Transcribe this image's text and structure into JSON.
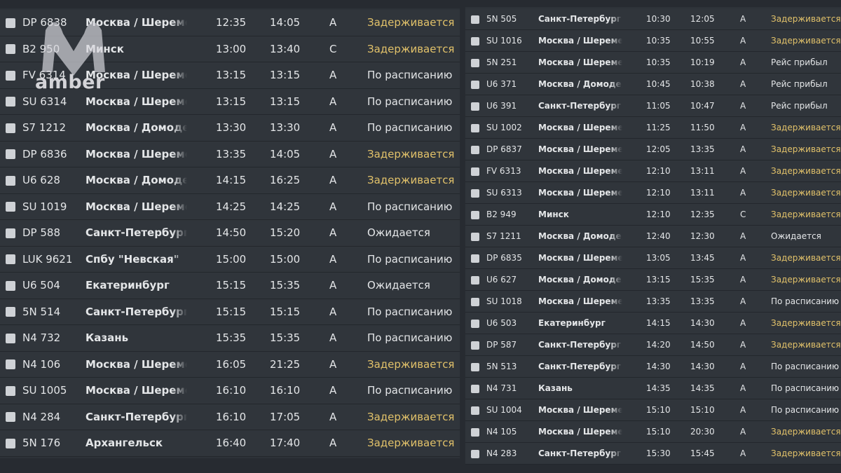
{
  "logo": "amber",
  "left_board": {
    "rows": [
      {
        "flight": "DP 6838",
        "destination": "Москва / Шереметь",
        "scheduled": "12:35",
        "expected": "14:05",
        "terminal": "A",
        "status": "Задерживается",
        "status_color": "#e2c26a"
      },
      {
        "flight": "B2 950",
        "destination": "Минск",
        "scheduled": "13:00",
        "expected": "13:40",
        "terminal": "C",
        "status": "Задерживается",
        "status_color": "#e2c26a"
      },
      {
        "flight": "FV 6314",
        "destination": "Москва / Шереметь",
        "scheduled": "13:15",
        "expected": "13:15",
        "terminal": "A",
        "status": "По расписанию"
      },
      {
        "flight": "SU 6314",
        "destination": "Москва / Шереметь",
        "scheduled": "13:15",
        "expected": "13:15",
        "terminal": "A",
        "status": "По расписанию"
      },
      {
        "flight": "S7 1212",
        "destination": "Москва / Домодедо",
        "scheduled": "13:30",
        "expected": "13:30",
        "terminal": "A",
        "status": "По расписанию"
      },
      {
        "flight": "DP 6836",
        "destination": "Москва / Шереметь",
        "scheduled": "13:35",
        "expected": "14:05",
        "terminal": "A",
        "status": "Задерживается",
        "status_color": "#e2c26a"
      },
      {
        "flight": "U6 628",
        "destination": "Москва / Домодедо",
        "scheduled": "14:15",
        "expected": "16:25",
        "terminal": "A",
        "status": "Задерживается",
        "status_color": "#e2c26a"
      },
      {
        "flight": "SU 1019",
        "destination": "Москва / Шереметь",
        "scheduled": "14:25",
        "expected": "14:25",
        "terminal": "A",
        "status": "По расписанию"
      },
      {
        "flight": "DP 588",
        "destination": "Санкт-Петербург",
        "scheduled": "14:50",
        "expected": "15:20",
        "terminal": "A",
        "status": "Ожидается"
      },
      {
        "flight": "LUK 9621",
        "destination": "Спбу \"Невская\"",
        "scheduled": "15:00",
        "expected": "15:00",
        "terminal": "A",
        "status": "По расписанию"
      },
      {
        "flight": "U6 504",
        "destination": "Екатеринбург",
        "scheduled": "15:15",
        "expected": "15:35",
        "terminal": "A",
        "status": "Ожидается"
      },
      {
        "flight": "5N 514",
        "destination": "Санкт-Петербург",
        "scheduled": "15:15",
        "expected": "15:15",
        "terminal": "A",
        "status": "По расписанию"
      },
      {
        "flight": "N4 732",
        "destination": "Казань",
        "scheduled": "15:35",
        "expected": "15:35",
        "terminal": "A",
        "status": "По расписанию"
      },
      {
        "flight": "N4 106",
        "destination": "Москва / Шереметь",
        "scheduled": "16:05",
        "expected": "21:25",
        "terminal": "A",
        "status": "Задерживается",
        "status_color": "#e2c26a"
      },
      {
        "flight": "SU 1005",
        "destination": "Москва / Шереметь",
        "scheduled": "16:10",
        "expected": "16:10",
        "terminal": "A",
        "status": "По расписанию"
      },
      {
        "flight": "N4 284",
        "destination": "Санкт-Петербург",
        "scheduled": "16:10",
        "expected": "17:05",
        "terminal": "A",
        "status": "Задерживается",
        "status_color": "#e2c26a"
      },
      {
        "flight": "5N 176",
        "destination": "Архангельск",
        "scheduled": "16:40",
        "expected": "17:40",
        "terminal": "A",
        "status": "Задерживается",
        "status_color": "#e2c26a"
      }
    ]
  },
  "right_board": {
    "rows": [
      {
        "flight": "5N 505",
        "destination": "Санкт-Петербург",
        "scheduled": "10:30",
        "expected": "12:05",
        "terminal": "A",
        "status": "Задерживается",
        "status_color": "#e2c26a"
      },
      {
        "flight": "SU 1016",
        "destination": "Москва / Шереметь",
        "scheduled": "10:35",
        "expected": "10:55",
        "terminal": "A",
        "status": "Задерживается",
        "status_color": "#e2c26a"
      },
      {
        "flight": "5N 251",
        "destination": "Москва / Шереметь",
        "scheduled": "10:35",
        "expected": "10:19",
        "terminal": "A",
        "status": "Рейс прибыл"
      },
      {
        "flight": "U6 371",
        "destination": "Москва / Домодедо",
        "scheduled": "10:45",
        "expected": "10:38",
        "terminal": "A",
        "status": "Рейс прибыл"
      },
      {
        "flight": "U6 391",
        "destination": "Санкт-Петербург",
        "scheduled": "11:05",
        "expected": "10:47",
        "terminal": "A",
        "status": "Рейс прибыл"
      },
      {
        "flight": "SU 1002",
        "destination": "Москва / Шереметь",
        "scheduled": "11:25",
        "expected": "11:50",
        "terminal": "A",
        "status": "Задерживается",
        "status_color": "#e2c26a"
      },
      {
        "flight": "DP 6837",
        "destination": "Москва / Шереметь",
        "scheduled": "12:05",
        "expected": "13:35",
        "terminal": "A",
        "status": "Задерживается",
        "status_color": "#e2c26a"
      },
      {
        "flight": "FV 6313",
        "destination": "Москва / Шереметь",
        "scheduled": "12:10",
        "expected": "13:11",
        "terminal": "A",
        "status": "Задерживается",
        "status_color": "#e2c26a"
      },
      {
        "flight": "SU 6313",
        "destination": "Москва / Шереметь",
        "scheduled": "12:10",
        "expected": "13:11",
        "terminal": "A",
        "status": "Задерживается",
        "status_color": "#e2c26a"
      },
      {
        "flight": "B2 949",
        "destination": "Минск",
        "scheduled": "12:10",
        "expected": "12:35",
        "terminal": "C",
        "status": "Задерживается",
        "status_color": "#e2c26a"
      },
      {
        "flight": "S7 1211",
        "destination": "Москва / Домодедо",
        "scheduled": "12:40",
        "expected": "12:30",
        "terminal": "A",
        "status": "Ожидается"
      },
      {
        "flight": "DP 6835",
        "destination": "Москва / Шереметь",
        "scheduled": "13:05",
        "expected": "13:45",
        "terminal": "A",
        "status": "Задерживается",
        "status_color": "#e2c26a"
      },
      {
        "flight": "U6 627",
        "destination": "Москва / Домодедо",
        "scheduled": "13:15",
        "expected": "15:35",
        "terminal": "A",
        "status": "Задерживается",
        "status_color": "#e2c26a"
      },
      {
        "flight": "SU 1018",
        "destination": "Москва / Шереметь",
        "scheduled": "13:35",
        "expected": "13:35",
        "terminal": "A",
        "status": "По расписанию"
      },
      {
        "flight": "U6 503",
        "destination": "Екатеринбург",
        "scheduled": "14:15",
        "expected": "14:30",
        "terminal": "A",
        "status": "Задерживается",
        "status_color": "#e2c26a"
      },
      {
        "flight": "DP 587",
        "destination": "Санкт-Петербург",
        "scheduled": "14:20",
        "expected": "14:50",
        "terminal": "A",
        "status": "Задерживается",
        "status_color": "#e2c26a"
      },
      {
        "flight": "5N 513",
        "destination": "Санкт-Петербург",
        "scheduled": "14:30",
        "expected": "14:30",
        "terminal": "A",
        "status": "По расписанию"
      },
      {
        "flight": "N4 731",
        "destination": "Казань",
        "scheduled": "14:35",
        "expected": "14:35",
        "terminal": "A",
        "status": "По расписанию"
      },
      {
        "flight": "SU 1004",
        "destination": "Москва / Шереметь",
        "scheduled": "15:10",
        "expected": "15:10",
        "terminal": "A",
        "status": "По расписанию"
      },
      {
        "flight": "N4 105",
        "destination": "Москва / Шереметь",
        "scheduled": "15:10",
        "expected": "20:30",
        "terminal": "A",
        "status": "Задерживается",
        "status_color": "#e2c26a"
      },
      {
        "flight": "N4 283",
        "destination": "Санкт-Петербург",
        "scheduled": "15:30",
        "expected": "15:45",
        "terminal": "A",
        "status": "Задерживается",
        "status_color": "#e2c26a"
      }
    ]
  }
}
